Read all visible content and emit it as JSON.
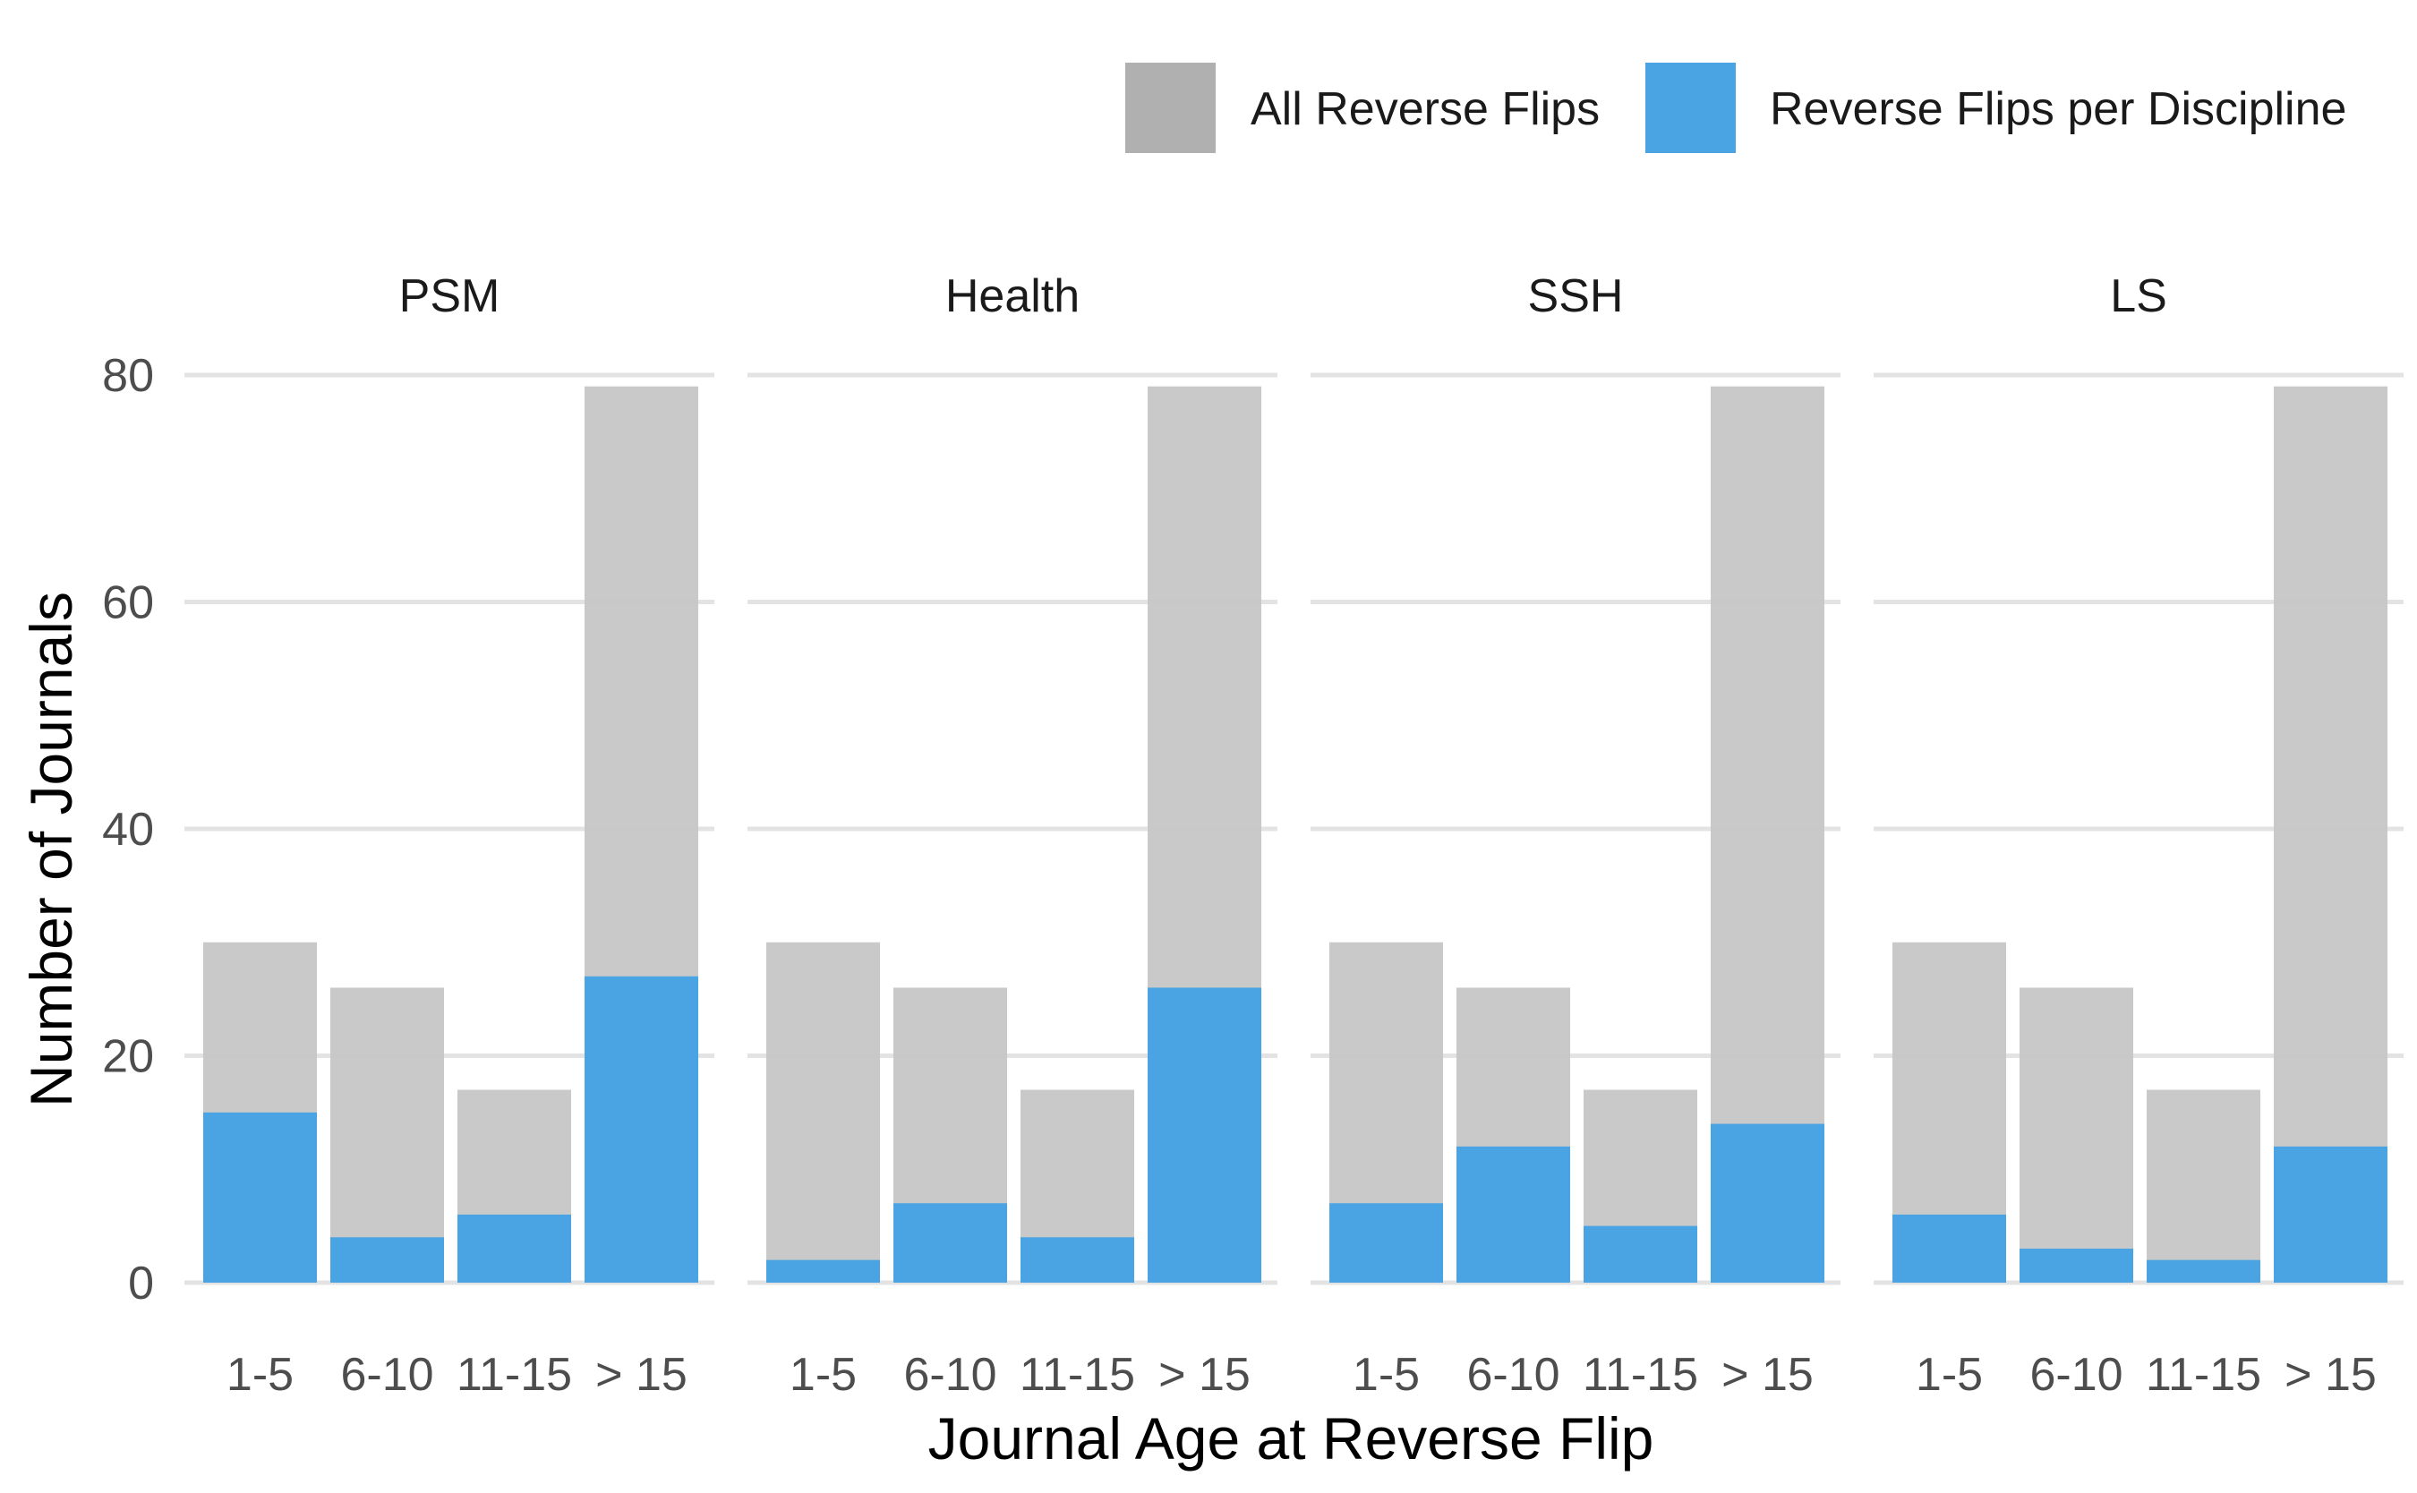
{
  "chart_data": {
    "type": "bar",
    "xlabel": "Journal Age at Reverse Flip",
    "ylabel": "Number of Journals",
    "ylim": [
      0,
      80
    ],
    "yticks": [
      0,
      20,
      40,
      60,
      80
    ],
    "grid": true,
    "legend_position": "top-right",
    "categories": [
      "1-5",
      "6-10",
      "11-15",
      "> 15"
    ],
    "legend": [
      {
        "key": "all",
        "label": "All Reverse Flips",
        "color": "#b0b0b0"
      },
      {
        "key": "discipline",
        "label": "Reverse Flips per Discipline",
        "color": "#4aa3e2"
      }
    ],
    "all_values": [
      30,
      26,
      17,
      79
    ],
    "panels": [
      {
        "name": "PSM",
        "values": [
          15,
          4,
          6,
          27
        ]
      },
      {
        "name": "Health",
        "values": [
          2,
          7,
          4,
          26
        ]
      },
      {
        "name": "SSH",
        "values": [
          7,
          12,
          5,
          14
        ]
      },
      {
        "name": "LS",
        "values": [
          6,
          3,
          2,
          12
        ]
      }
    ],
    "colors": {
      "all_bar": "#c6c6c6",
      "discipline_bar": "#4aa3e2",
      "grid": "#e3e3e3"
    }
  }
}
